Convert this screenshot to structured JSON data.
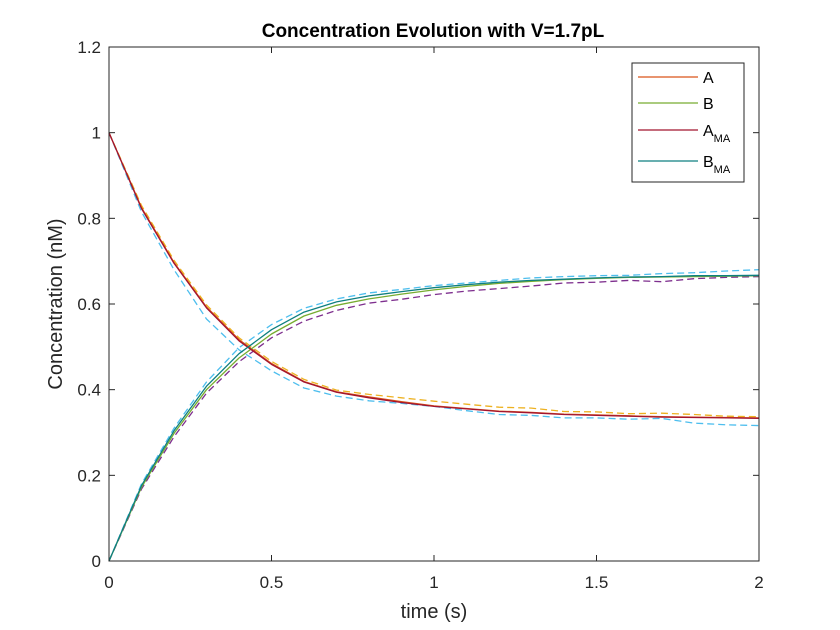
{
  "chart_data": {
    "type": "line",
    "title": "Concentration Evolution with V=1.7pL",
    "xlabel": "time (s)",
    "ylabel": "Concentration (nM)",
    "xlim": [
      0,
      2
    ],
    "ylim": [
      0,
      1.2
    ],
    "xticks": [
      0,
      0.5,
      1,
      1.5,
      2
    ],
    "xtick_labels": [
      "0",
      "0.5",
      "1",
      "1.5",
      "2"
    ],
    "yticks": [
      0,
      0.2,
      0.4,
      0.6,
      0.8,
      1,
      1.2
    ],
    "ytick_labels": [
      "0",
      "0.2",
      "0.4",
      "0.6",
      "0.8",
      "1",
      "1.2"
    ],
    "grid": false,
    "legend_location": "top-right",
    "x": [
      0,
      0.1,
      0.2,
      0.3,
      0.4,
      0.5,
      0.6,
      0.7,
      0.8,
      0.9,
      1.0,
      1.1,
      1.2,
      1.3,
      1.4,
      1.5,
      1.6,
      1.7,
      1.8,
      1.9,
      2.0
    ],
    "series": [
      {
        "name": "A",
        "legend_main": "A",
        "legend_sub": "",
        "style": "solid",
        "color": "#D95319",
        "values": [
          1.0,
          0.825,
          0.697,
          0.593,
          0.517,
          0.461,
          0.419,
          0.395,
          0.383,
          0.372,
          0.362,
          0.356,
          0.35,
          0.347,
          0.343,
          0.341,
          0.339,
          0.337,
          0.336,
          0.335,
          0.334
        ]
      },
      {
        "name": "B",
        "legend_main": "B",
        "legend_sub": "",
        "style": "solid",
        "color": "#77AC30",
        "values": [
          0.0,
          0.172,
          0.298,
          0.4,
          0.474,
          0.53,
          0.572,
          0.597,
          0.612,
          0.623,
          0.633,
          0.641,
          0.648,
          0.653,
          0.657,
          0.66,
          0.662,
          0.663,
          0.664,
          0.665,
          0.666
        ]
      },
      {
        "name": "A_MA",
        "legend_main": "A",
        "legend_sub": "MA",
        "style": "solid",
        "color": "#A2142F",
        "values": [
          1.0,
          0.823,
          0.695,
          0.591,
          0.514,
          0.459,
          0.418,
          0.394,
          0.381,
          0.37,
          0.361,
          0.355,
          0.349,
          0.346,
          0.342,
          0.34,
          0.338,
          0.336,
          0.335,
          0.334,
          0.333
        ]
      },
      {
        "name": "B_MA",
        "legend_main": "B",
        "legend_sub": "MA",
        "style": "solid",
        "color": "#0E7F80",
        "values": [
          0.0,
          0.176,
          0.304,
          0.408,
          0.484,
          0.54,
          0.581,
          0.605,
          0.619,
          0.629,
          0.638,
          0.645,
          0.651,
          0.655,
          0.658,
          0.661,
          0.663,
          0.664,
          0.666,
          0.666,
          0.667
        ]
      },
      {
        "name": "",
        "style": "dashed",
        "color": "#EDB120",
        "values": [
          1.0,
          0.83,
          0.702,
          0.598,
          0.521,
          0.466,
          0.424,
          0.399,
          0.389,
          0.381,
          0.373,
          0.366,
          0.359,
          0.357,
          0.349,
          0.348,
          0.344,
          0.345,
          0.342,
          0.338,
          0.337
        ]
      },
      {
        "name": "",
        "style": "dashed",
        "color": "#4DBEEE",
        "values": [
          1.0,
          0.815,
          0.68,
          0.565,
          0.493,
          0.444,
          0.404,
          0.385,
          0.374,
          0.368,
          0.361,
          0.351,
          0.342,
          0.34,
          0.334,
          0.334,
          0.331,
          0.333,
          0.322,
          0.318,
          0.316
        ]
      },
      {
        "name": "",
        "style": "dashed",
        "color": "#7E2F8E",
        "values": [
          0.0,
          0.168,
          0.29,
          0.392,
          0.465,
          0.521,
          0.56,
          0.585,
          0.602,
          0.611,
          0.622,
          0.63,
          0.636,
          0.642,
          0.649,
          0.651,
          0.655,
          0.652,
          0.659,
          0.662,
          0.664
        ]
      },
      {
        "name": "",
        "style": "dashed",
        "color": "#4DBEEE",
        "values": [
          0.0,
          0.18,
          0.31,
          0.418,
          0.498,
          0.552,
          0.59,
          0.612,
          0.626,
          0.634,
          0.643,
          0.649,
          0.655,
          0.661,
          0.664,
          0.666,
          0.667,
          0.671,
          0.673,
          0.677,
          0.68
        ]
      }
    ]
  }
}
